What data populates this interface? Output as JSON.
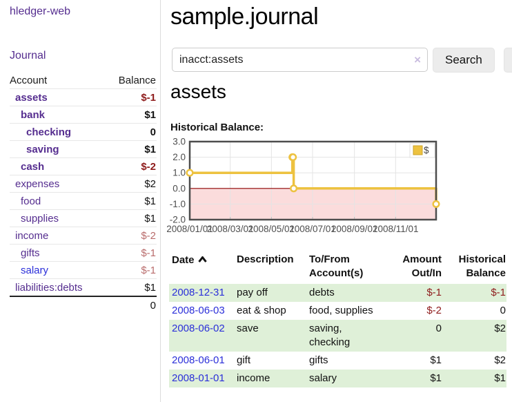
{
  "app": {
    "brand": "hledger-web",
    "nav_journal": "Journal"
  },
  "sidebar": {
    "header": {
      "account": "Account",
      "balance": "Balance"
    },
    "accounts": [
      {
        "label": "assets",
        "balance": "$-1",
        "depth": 1,
        "bold": true,
        "neg": "strong",
        "link": "purple"
      },
      {
        "label": "bank",
        "balance": "$1",
        "depth": 2,
        "bold": true,
        "neg": "none",
        "link": "purple"
      },
      {
        "label": "checking",
        "balance": "0",
        "depth": 3,
        "bold": true,
        "neg": "none",
        "link": "purple"
      },
      {
        "label": "saving",
        "balance": "$1",
        "depth": 3,
        "bold": true,
        "neg": "none",
        "link": "purple"
      },
      {
        "label": "cash",
        "balance": "$-2",
        "depth": 2,
        "bold": true,
        "neg": "strong",
        "link": "purple"
      },
      {
        "label": "expenses",
        "balance": "$2",
        "depth": 1,
        "bold": false,
        "neg": "none",
        "link": "purple"
      },
      {
        "label": "food",
        "balance": "$1",
        "depth": 2,
        "bold": false,
        "neg": "none",
        "link": "purple"
      },
      {
        "label": "supplies",
        "balance": "$1",
        "depth": 2,
        "bold": false,
        "neg": "none",
        "link": "purple"
      },
      {
        "label": "income",
        "balance": "$-2",
        "depth": 1,
        "bold": false,
        "neg": "muted",
        "link": "purple"
      },
      {
        "label": "gifts",
        "balance": "$-1",
        "depth": 2,
        "bold": false,
        "neg": "muted",
        "link": "purple"
      },
      {
        "label": "salary",
        "balance": "$-1",
        "depth": 2,
        "bold": false,
        "neg": "muted",
        "link": "blue"
      },
      {
        "label": "liabilities:debts",
        "balance": "$1",
        "depth": 1,
        "bold": false,
        "neg": "none",
        "link": "purple"
      }
    ],
    "total": "0"
  },
  "main": {
    "title": "sample.journal",
    "search": {
      "value": "inacct:assets",
      "clear_icon": "×",
      "button_label": "Search",
      "help_label": "?"
    },
    "account_title": "assets",
    "chart_label": "Historical Balance:"
  },
  "chart_data": {
    "type": "line",
    "title": "Historical Balance",
    "steps": true,
    "series": [
      {
        "name": "$",
        "color": "#edc240",
        "points": [
          [
            "2008-01-01",
            1
          ],
          [
            "2008-06-01",
            2
          ],
          [
            "2008-06-02",
            2
          ],
          [
            "2008-06-03",
            0
          ],
          [
            "2008-12-31",
            -1
          ]
        ]
      }
    ],
    "xlim": [
      "2008-01-01",
      "2008-12-31"
    ],
    "ylim": [
      -2,
      3
    ],
    "yticks": [
      "3.0",
      "2.0",
      "1.0",
      "0.0",
      "-1.0",
      "-2.0"
    ],
    "xticks": [
      "2008/01/01",
      "2008/03/01",
      "2008/05/01",
      "2008/07/01",
      "2008/09/01",
      "2008/11/01"
    ],
    "xtick_dates": [
      "2008-01-01",
      "2008-03-01",
      "2008-05-01",
      "2008-07-01",
      "2008-09-01",
      "2008-11-01"
    ],
    "legend": {
      "label": "$",
      "position": "top-right"
    },
    "grid": true,
    "zero_line_color": "#8b0000",
    "negative_region_color": "#fbdcdc"
  },
  "register": {
    "columns": [
      "Date",
      "Description",
      "To/From Account(s)",
      "Amount Out/In",
      "Historical Balance"
    ],
    "sort": "date-ascending",
    "rows": [
      {
        "date": "2008-12-31",
        "description": "pay off",
        "accounts": "debts",
        "amount": "$-1",
        "balance": "$-1"
      },
      {
        "date": "2008-06-03",
        "description": "eat & shop",
        "accounts": "food, supplies",
        "amount": "$-2",
        "balance": "0"
      },
      {
        "date": "2008-06-02",
        "description": "save",
        "accounts": "saving, checking",
        "amount": "0",
        "balance": "$2"
      },
      {
        "date": "2008-06-01",
        "description": "gift",
        "accounts": "gifts",
        "amount": "$1",
        "balance": "$2"
      },
      {
        "date": "2008-01-01",
        "description": "income",
        "accounts": "salary",
        "amount": "$1",
        "balance": "$1"
      }
    ]
  },
  "colors": {
    "link_purple": "#552d8f",
    "link_blue": "#2b2fd9",
    "negative_strong": "#8e1b1b",
    "negative_muted": "#b96c6c",
    "row_shaded_green": "#dff0d8",
    "chart_line": "#edc240",
    "chart_zero_line": "#8b0000",
    "chart_negative_fill": "#fbdcdc"
  }
}
